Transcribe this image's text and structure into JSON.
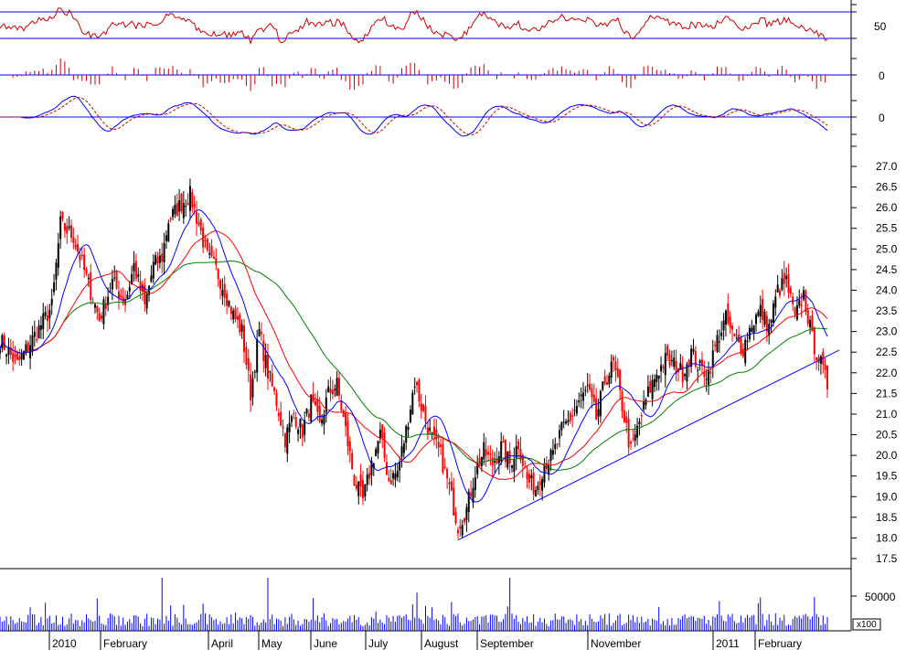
{
  "chart_data": {
    "type": "candlestick",
    "colors": {
      "up": "#000000",
      "down": "#ff0000",
      "ma_fast": "#0000ff",
      "ma_mid": "#ff0000",
      "ma_slow": "#008000",
      "trendline": "#0000ff",
      "rsi": "#cc0000",
      "hist": "#cc0000",
      "macd": "#0000ff",
      "signal": "#cc0000",
      "volume": "#0000ff",
      "guide": "#0000ff"
    },
    "price_axis": {
      "ticks": [
        "27.0",
        "26.5",
        "26.0",
        "25.5",
        "25.0",
        "24.5",
        "24.0",
        "23.5",
        "23.0",
        "22.5",
        "22.0",
        "21.5",
        "21.0",
        "20.5",
        "20.0",
        "19.5",
        "19.0",
        "18.5",
        "18.0",
        "17.5"
      ],
      "ylim": [
        17.5,
        27.0
      ]
    },
    "indicator_ticks": {
      "rsi": "50",
      "hist": "0",
      "macd": "0"
    },
    "volume_axis": {
      "tick": "50000",
      "unit": "x100"
    },
    "months": [
      "2010",
      "February",
      "April",
      "May",
      "June",
      "July",
      "August",
      "September",
      "November",
      "2011",
      "February"
    ],
    "prices": [
      {
        "day": 0,
        "close": 22.8
      },
      {
        "day": 8,
        "close": 22.2
      },
      {
        "day": 16,
        "close": 22.9
      },
      {
        "day": 24,
        "close": 23.6
      },
      {
        "day": 28,
        "close": 25.6
      },
      {
        "day": 34,
        "close": 25.3
      },
      {
        "day": 40,
        "close": 24.3
      },
      {
        "day": 46,
        "close": 23.3
      },
      {
        "day": 52,
        "close": 24.2
      },
      {
        "day": 58,
        "close": 23.7
      },
      {
        "day": 62,
        "close": 24.6
      },
      {
        "day": 67,
        "close": 23.6
      },
      {
        "day": 71,
        "close": 24.6
      },
      {
        "day": 75,
        "close": 24.8
      },
      {
        "day": 78,
        "close": 25.7
      },
      {
        "day": 84,
        "close": 26.1
      },
      {
        "day": 88,
        "close": 26.3
      },
      {
        "day": 92,
        "close": 25.6
      },
      {
        "day": 96,
        "close": 24.8
      },
      {
        "day": 100,
        "close": 24.5
      },
      {
        "day": 104,
        "close": 24.0
      },
      {
        "day": 108,
        "close": 23.4
      },
      {
        "day": 112,
        "close": 23.0
      },
      {
        "day": 116,
        "close": 21.5
      },
      {
        "day": 120,
        "close": 23.0
      },
      {
        "day": 124,
        "close": 22.0
      },
      {
        "day": 128,
        "close": 21.3
      },
      {
        "day": 132,
        "close": 20.4
      },
      {
        "day": 136,
        "close": 21.0
      },
      {
        "day": 140,
        "close": 20.6
      },
      {
        "day": 144,
        "close": 21.3
      },
      {
        "day": 148,
        "close": 20.7
      },
      {
        "day": 152,
        "close": 21.5
      },
      {
        "day": 156,
        "close": 21.7
      },
      {
        "day": 160,
        "close": 20.6
      },
      {
        "day": 164,
        "close": 19.4
      },
      {
        "day": 168,
        "close": 18.9
      },
      {
        "day": 172,
        "close": 19.8
      },
      {
        "day": 176,
        "close": 20.5
      },
      {
        "day": 180,
        "close": 19.4
      },
      {
        "day": 184,
        "close": 19.6
      },
      {
        "day": 188,
        "close": 20.6
      },
      {
        "day": 192,
        "close": 21.8
      },
      {
        "day": 196,
        "close": 21.0
      },
      {
        "day": 200,
        "close": 20.4
      },
      {
        "day": 204,
        "close": 20.0
      },
      {
        "day": 208,
        "close": 19.2
      },
      {
        "day": 212,
        "close": 18.3
      },
      {
        "day": 216,
        "close": 18.7
      },
      {
        "day": 220,
        "close": 19.6
      },
      {
        "day": 224,
        "close": 20.1
      },
      {
        "day": 228,
        "close": 19.8
      },
      {
        "day": 232,
        "close": 20.2
      },
      {
        "day": 236,
        "close": 19.8
      },
      {
        "day": 240,
        "close": 20.3
      },
      {
        "day": 244,
        "close": 19.4
      },
      {
        "day": 248,
        "close": 19.2
      },
      {
        "day": 252,
        "close": 19.8
      },
      {
        "day": 256,
        "close": 20.0
      },
      {
        "day": 260,
        "close": 20.6
      },
      {
        "day": 264,
        "close": 20.9
      },
      {
        "day": 268,
        "close": 21.3
      },
      {
        "day": 272,
        "close": 21.6
      },
      {
        "day": 276,
        "close": 20.9
      },
      {
        "day": 280,
        "close": 21.8
      },
      {
        "day": 284,
        "close": 22.2
      },
      {
        "day": 288,
        "close": 21.2
      },
      {
        "day": 292,
        "close": 20.1
      },
      {
        "day": 296,
        "close": 20.8
      },
      {
        "day": 300,
        "close": 21.5
      },
      {
        "day": 304,
        "close": 22.0
      },
      {
        "day": 308,
        "close": 22.3
      },
      {
        "day": 312,
        "close": 22.2
      },
      {
        "day": 316,
        "close": 22.0
      },
      {
        "day": 320,
        "close": 22.5
      },
      {
        "day": 324,
        "close": 22.1
      },
      {
        "day": 328,
        "close": 22.0
      },
      {
        "day": 332,
        "close": 22.8
      },
      {
        "day": 336,
        "close": 23.3
      },
      {
        "day": 340,
        "close": 22.8
      },
      {
        "day": 344,
        "close": 22.6
      },
      {
        "day": 348,
        "close": 23.2
      },
      {
        "day": 352,
        "close": 23.5
      },
      {
        "day": 356,
        "close": 23.1
      },
      {
        "day": 360,
        "close": 24.0
      },
      {
        "day": 364,
        "close": 24.2
      },
      {
        "day": 368,
        "close": 23.3
      },
      {
        "day": 372,
        "close": 23.9
      },
      {
        "day": 376,
        "close": 22.8
      },
      {
        "day": 380,
        "close": 22.2
      },
      {
        "day": 383,
        "close": 21.7
      }
    ]
  }
}
